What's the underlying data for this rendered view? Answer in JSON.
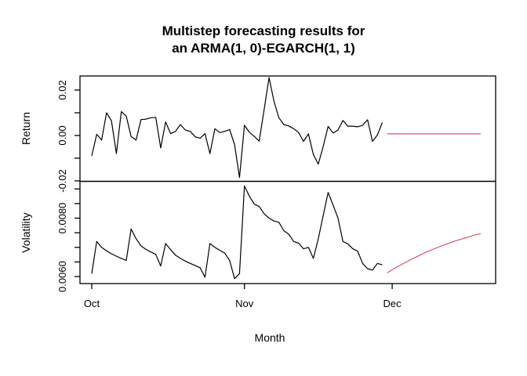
{
  "title": {
    "line1": "Multistep forecasting results for",
    "line2": "an ARMA(1, 0)-EGARCH(1, 1)"
  },
  "colors": {
    "observed": "#000000",
    "forecast": "#DF536B",
    "axis": "#000000",
    "background": "#FFFFFF"
  },
  "x_axis": {
    "label": "Month",
    "tick_labels": [
      "Oct",
      "Nov",
      "Dec"
    ],
    "tick_days": [
      0,
      31,
      61
    ]
  },
  "chart_data": [
    {
      "type": "line",
      "panel": "top",
      "ylabel": "Return",
      "ylim": [
        -0.0202,
        0.0262
      ],
      "yticks": [
        -0.02,
        -0.01,
        0.0,
        0.01,
        0.02
      ],
      "ytick_labels": [
        "-0.02",
        "",
        "0.00",
        "",
        "0.02"
      ],
      "legend": "none",
      "grid": false,
      "series": [
        {
          "name": "observed",
          "color_key": "observed",
          "start_day": 0,
          "values": [
            -0.009,
            0.0005,
            -0.002,
            0.01,
            0.0065,
            -0.008,
            0.0105,
            0.0085,
            -0.0005,
            -0.002,
            0.007,
            0.0072,
            0.0078,
            0.008,
            -0.0055,
            0.006,
            0.0008,
            0.0018,
            0.0048,
            0.0024,
            0.0018,
            -0.0006,
            -0.0012,
            0.0008,
            -0.008,
            0.003,
            0.0013,
            0.0018,
            0.0026,
            -0.004,
            -0.0185,
            0.0045,
            0.0014,
            -0.0004,
            -0.0025,
            0.0114,
            0.0255,
            0.015,
            0.0078,
            0.0048,
            0.0042,
            0.003,
            0.0013,
            -0.0026,
            0.0007,
            -0.0084,
            -0.0126,
            -0.0047,
            0.004,
            0.0011,
            0.0024,
            0.0066,
            0.0041,
            0.0041,
            0.0038,
            0.0045,
            0.0069,
            -0.0026,
            0.0002,
            0.0057
          ]
        },
        {
          "name": "forecast",
          "color_key": "forecast",
          "start_day": 60,
          "values": [
            0.0007,
            0.0007,
            0.0007,
            0.0007,
            0.0007,
            0.0007,
            0.0007,
            0.0007,
            0.0007,
            0.0007,
            0.0007,
            0.0007,
            0.0007,
            0.0007,
            0.0007,
            0.0007,
            0.0007,
            0.0007,
            0.0007,
            0.0007
          ]
        }
      ]
    },
    {
      "type": "line",
      "panel": "bottom",
      "ylabel": "Volatility",
      "ylim": [
        0.00576,
        0.00926
      ],
      "yticks": [
        0.006,
        0.0065,
        0.007,
        0.0075,
        0.008,
        0.0085,
        0.009
      ],
      "ytick_labels": [
        "0.0060",
        "",
        "",
        "",
        "0.0080",
        "",
        ""
      ],
      "legend": "none",
      "grid": false,
      "series": [
        {
          "name": "observed",
          "color_key": "observed",
          "start_day": 0,
          "values": [
            0.0061,
            0.0072,
            0.007,
            0.00688,
            0.00678,
            0.0067,
            0.00662,
            0.00655,
            0.00763,
            0.0073,
            0.00705,
            0.00693,
            0.00684,
            0.00676,
            0.00636,
            0.00713,
            0.00692,
            0.00673,
            0.00662,
            0.00653,
            0.00645,
            0.00638,
            0.0063,
            0.00598,
            0.00713,
            0.007,
            0.0069,
            0.0068,
            0.00655,
            0.00593,
            0.0061,
            0.0091,
            0.00875,
            0.00848,
            0.0084,
            0.00815,
            0.008,
            0.0079,
            0.00786,
            0.00757,
            0.00745,
            0.0072,
            0.00714,
            0.00695,
            0.007,
            0.00662,
            0.0073,
            0.0081,
            0.00888,
            0.00845,
            0.008,
            0.0072,
            0.00712,
            0.00695,
            0.00687,
            0.00645,
            0.00627,
            0.00622,
            0.00645,
            0.0064
          ]
        },
        {
          "name": "forecast",
          "color_key": "forecast",
          "start_day": 60,
          "values": [
            0.00613,
            0.00623,
            0.00633,
            0.00642,
            0.00651,
            0.0066,
            0.00668,
            0.00676,
            0.00684,
            0.00691,
            0.00698,
            0.00705,
            0.00711,
            0.00717,
            0.00723,
            0.00728,
            0.00733,
            0.00738,
            0.00743,
            0.00747
          ]
        }
      ]
    }
  ]
}
